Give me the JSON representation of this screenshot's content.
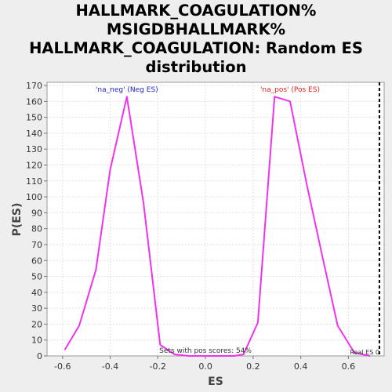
{
  "chart_data": {
    "type": "line",
    "title_lines": [
      "HALLMARK_COAGULATION%",
      "MSIGDBHALLMARK%",
      "HALLMARK_COAGULATION: Random ES",
      "distribution"
    ],
    "xlabel": "ES",
    "ylabel": "P(ES)",
    "xlim": [
      -0.665,
      0.75
    ],
    "ylim": [
      0,
      172
    ],
    "x_ticks": [
      -0.6,
      -0.4,
      -0.2,
      0.0,
      0.2,
      0.4,
      0.6
    ],
    "x_tick_labels": [
      "-0.6",
      "-0.4",
      "-0.2",
      "0.0",
      "0.2",
      "0.4",
      "0.6"
    ],
    "y_ticks": [
      0,
      10,
      20,
      30,
      40,
      50,
      60,
      70,
      80,
      90,
      100,
      110,
      120,
      130,
      140,
      150,
      160,
      170
    ],
    "y_tick_labels": [
      "0",
      "10",
      "20",
      "30",
      "40",
      "50",
      "60",
      "70",
      "80",
      "90",
      "100",
      "110",
      "120",
      "130",
      "140",
      "150",
      "160",
      "170"
    ],
    "grid": true,
    "line_color": "#ee33ee",
    "series": [
      {
        "x": [
          -0.59,
          -0.53,
          -0.46,
          -0.4,
          -0.33,
          -0.26,
          -0.19,
          -0.13,
          -0.07,
          0.0,
          0.06,
          0.12,
          0.16,
          0.22,
          0.29,
          0.355,
          0.425,
          0.49,
          0.555,
          0.625,
          0.69
        ],
        "y": [
          4,
          19,
          54,
          117,
          163,
          96,
          7,
          1,
          0,
          0,
          0,
          0,
          1,
          21,
          163,
          160,
          108,
          63,
          19,
          2,
          0
        ]
      }
    ],
    "annotations": [
      {
        "text": "'na_neg' (Neg ES)",
        "x": -0.33,
        "y": 165,
        "color": "#2222cc"
      },
      {
        "text": "'na_pos' (Pos ES)",
        "x": 0.355,
        "y": 165,
        "color": "#dd2222"
      },
      {
        "text": "Sets with pos scores: 54%",
        "x": 0.0,
        "y": 1,
        "color": "#333333"
      },
      {
        "text": "Real ES 0",
        "x": 0.73,
        "y": 0,
        "color": "#333333"
      }
    ],
    "real_es_x": 0.73,
    "real_es_color": "#000000"
  }
}
